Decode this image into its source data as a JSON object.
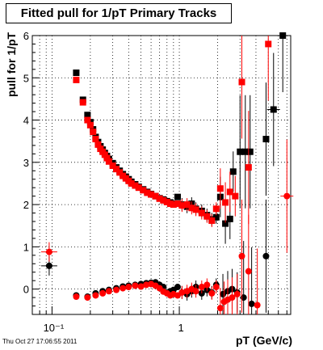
{
  "chart_data": {
    "type": "scatter",
    "title": "Fitted pull for 1/pT  Primary Tracks",
    "xlabel": "pT (GeV/c)",
    "ylabel": "pull for 1/pT",
    "x_scale": "log",
    "xlim": [
      0.07,
      7.5
    ],
    "ylim": [
      -0.6,
      6
    ],
    "grid": true,
    "yticks": [
      0,
      1,
      2,
      3,
      4,
      5,
      6
    ],
    "xtick_major": [
      0.1,
      1
    ],
    "xtick_labels": [
      "10⁻¹",
      "1"
    ],
    "series": [
      {
        "color": "#000000",
        "marker": "square",
        "points": [
          [
            0.155,
            5.12
          ],
          [
            0.175,
            4.48
          ],
          [
            0.19,
            4.12
          ],
          [
            0.2,
            3.95
          ],
          [
            0.21,
            3.78
          ],
          [
            0.22,
            3.6
          ],
          [
            0.23,
            3.48
          ],
          [
            0.24,
            3.38
          ],
          [
            0.25,
            3.3
          ],
          [
            0.26,
            3.22
          ],
          [
            0.27,
            3.15
          ],
          [
            0.28,
            3.08
          ],
          [
            0.3,
            2.98
          ],
          [
            0.32,
            2.88
          ],
          [
            0.34,
            2.8
          ],
          [
            0.36,
            2.72
          ],
          [
            0.38,
            2.66
          ],
          [
            0.4,
            2.6
          ],
          [
            0.42,
            2.54
          ],
          [
            0.45,
            2.48
          ],
          [
            0.48,
            2.42
          ],
          [
            0.52,
            2.36
          ],
          [
            0.56,
            2.3
          ],
          [
            0.6,
            2.25
          ],
          [
            0.65,
            2.2
          ],
          [
            0.7,
            2.15
          ],
          [
            0.75,
            2.12
          ],
          [
            0.8,
            2.08
          ],
          [
            0.85,
            2.05
          ],
          [
            0.9,
            2.02
          ],
          [
            0.97,
            2.18
          ],
          [
            1.05,
            2.0
          ],
          [
            1.15,
            1.95
          ],
          [
            1.25,
            2.02
          ],
          [
            1.35,
            1.9
          ],
          [
            1.5,
            1.85
          ],
          [
            1.65,
            1.75
          ],
          [
            1.8,
            1.65
          ],
          [
            1.95,
            1.7
          ],
          [
            2.1,
            2.18
          ],
          [
            2.3,
            1.55
          ],
          [
            2.5,
            1.66
          ],
          [
            2.65,
            2.78
          ],
          [
            3.0,
            3.25
          ],
          [
            3.3,
            3.25
          ],
          [
            3.6,
            3.25
          ],
          [
            4.8,
            3.55
          ],
          [
            5.5,
            4.25
          ],
          [
            6.5,
            6.0
          ]
        ]
      },
      {
        "color": "#ff0000",
        "marker": "square",
        "points": [
          [
            0.155,
            4.95
          ],
          [
            0.175,
            4.42
          ],
          [
            0.19,
            4.0
          ],
          [
            0.2,
            3.88
          ],
          [
            0.21,
            3.72
          ],
          [
            0.22,
            3.55
          ],
          [
            0.23,
            3.42
          ],
          [
            0.24,
            3.32
          ],
          [
            0.25,
            3.25
          ],
          [
            0.26,
            3.18
          ],
          [
            0.27,
            3.1
          ],
          [
            0.28,
            3.02
          ],
          [
            0.3,
            2.92
          ],
          [
            0.32,
            2.84
          ],
          [
            0.34,
            2.76
          ],
          [
            0.36,
            2.68
          ],
          [
            0.38,
            2.62
          ],
          [
            0.4,
            2.56
          ],
          [
            0.42,
            2.5
          ],
          [
            0.45,
            2.45
          ],
          [
            0.48,
            2.4
          ],
          [
            0.52,
            2.34
          ],
          [
            0.56,
            2.28
          ],
          [
            0.6,
            2.24
          ],
          [
            0.65,
            2.2
          ],
          [
            0.7,
            2.14
          ],
          [
            0.75,
            2.1
          ],
          [
            0.8,
            2.06
          ],
          [
            0.85,
            2.02
          ],
          [
            0.9,
            2.0
          ],
          [
            0.97,
            2.02
          ],
          [
            1.05,
            1.98
          ],
          [
            1.15,
            2.0
          ],
          [
            1.25,
            1.92
          ],
          [
            1.35,
            1.88
          ],
          [
            1.5,
            1.8
          ],
          [
            1.65,
            1.72
          ],
          [
            1.8,
            1.62
          ],
          [
            1.95,
            1.9
          ],
          [
            2.1,
            2.38
          ],
          [
            2.3,
            2.05
          ],
          [
            2.5,
            2.3
          ],
          [
            2.75,
            2.2
          ],
          [
            3.1,
            4.9
          ],
          [
            3.5,
            2.88
          ],
          [
            5.0,
            5.8
          ]
        ]
      },
      {
        "color": "#000000",
        "marker": "circle",
        "points": [
          [
            0.095,
            0.55
          ],
          [
            0.155,
            -0.15
          ],
          [
            0.19,
            -0.18
          ],
          [
            0.22,
            -0.1
          ],
          [
            0.25,
            -0.05
          ],
          [
            0.28,
            -0.02
          ],
          [
            0.32,
            0.02
          ],
          [
            0.36,
            0.06
          ],
          [
            0.4,
            0.08
          ],
          [
            0.45,
            0.1
          ],
          [
            0.5,
            0.12
          ],
          [
            0.55,
            0.14
          ],
          [
            0.6,
            0.15
          ],
          [
            0.65,
            0.16
          ],
          [
            0.7,
            0.1
          ],
          [
            0.75,
            0.05
          ],
          [
            0.8,
            -0.08
          ],
          [
            0.85,
            -0.05
          ],
          [
            0.9,
            -0.02
          ],
          [
            0.97,
            0.05
          ],
          [
            1.05,
            -0.08
          ],
          [
            1.15,
            -0.12
          ],
          [
            1.25,
            -0.05
          ],
          [
            1.35,
            0.05
          ],
          [
            1.5,
            -0.1
          ],
          [
            1.65,
            -0.02
          ],
          [
            1.8,
            -0.08
          ],
          [
            1.95,
            0.1
          ],
          [
            2.2,
            -0.12
          ],
          [
            2.4,
            -0.05
          ],
          [
            2.6,
            0.0
          ],
          [
            2.85,
            -0.08
          ],
          [
            3.2,
            -0.2
          ],
          [
            3.7,
            -0.35
          ],
          [
            4.8,
            0.78
          ]
        ]
      },
      {
        "color": "#ff0000",
        "marker": "circle",
        "points": [
          [
            0.095,
            0.88
          ],
          [
            0.155,
            -0.18
          ],
          [
            0.19,
            -0.2
          ],
          [
            0.22,
            -0.15
          ],
          [
            0.25,
            -0.1
          ],
          [
            0.28,
            -0.05
          ],
          [
            0.32,
            -0.02
          ],
          [
            0.36,
            0.02
          ],
          [
            0.4,
            0.05
          ],
          [
            0.45,
            0.08
          ],
          [
            0.5,
            0.06
          ],
          [
            0.55,
            0.1
          ],
          [
            0.6,
            0.12
          ],
          [
            0.65,
            0.08
          ],
          [
            0.7,
            0.02
          ],
          [
            0.75,
            -0.06
          ],
          [
            0.8,
            -0.1
          ],
          [
            0.85,
            -0.15
          ],
          [
            0.9,
            -0.12
          ],
          [
            0.97,
            -0.15
          ],
          [
            1.05,
            -0.08
          ],
          [
            1.15,
            -0.05
          ],
          [
            1.25,
            0.0
          ],
          [
            1.35,
            -0.05
          ],
          [
            1.5,
            0.05
          ],
          [
            1.65,
            0.1
          ],
          [
            1.8,
            -0.1
          ],
          [
            1.95,
            0.05
          ],
          [
            2.1,
            -0.45
          ],
          [
            2.25,
            -0.3
          ],
          [
            2.4,
            -0.25
          ],
          [
            2.6,
            -0.2
          ],
          [
            2.85,
            -0.12
          ],
          [
            3.1,
            0.78
          ],
          [
            3.5,
            0.42
          ],
          [
            4.1,
            -0.38
          ],
          [
            7.0,
            2.2
          ]
        ]
      }
    ]
  },
  "timestamp": "Thu Oct 27 17:06:55 2011"
}
